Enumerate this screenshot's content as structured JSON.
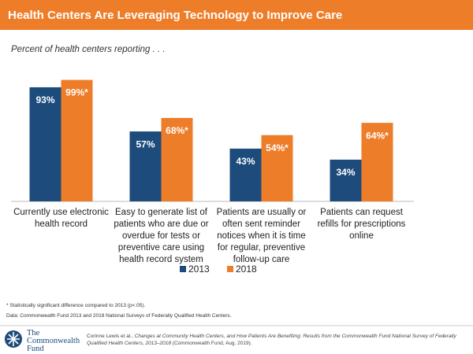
{
  "chart_data": {
    "type": "bar",
    "title": "Health Centers Are Leveraging Technology to Improve Care",
    "subtitle": "Percent of health centers reporting . . .",
    "categories": [
      "Currently use electronic health record",
      "Easy to generate list of patients who are due or overdue for tests or preventive care using health record system",
      "Patients are usually or often sent reminder notices when it is time for regular, preventive follow-up care",
      "Patients can request refills for prescriptions online"
    ],
    "series": [
      {
        "name": "2013",
        "color": "#1c4b7c",
        "values": [
          93,
          57,
          43,
          34
        ],
        "value_labels": [
          "93%",
          "57%",
          "43%",
          "34%"
        ]
      },
      {
        "name": "2018",
        "color": "#ee7d2a",
        "values": [
          99,
          68,
          54,
          64
        ],
        "value_labels": [
          "99%*",
          "68%*",
          "54%*",
          "64%*"
        ]
      }
    ],
    "ylim": [
      0,
      100
    ]
  },
  "footnote": "* Statistically significant difference compared to 2013 (p<.05).",
  "source": "Data: Commonwealth Fund 2013 and 2018 National Surveys of Federally Qualified Health Centers.",
  "logo": "The Commonwealth Fund",
  "citation": {
    "author": "Corinne Lewis et al., ",
    "title": "Changes at Community Health Centers, and How Patients Are Benefiting: Results from the Commonwealth Fund National Survey of Federally Qualified Health Centers, 2013–2018",
    "publisher": " (Commonwealth Fund, Aug. 2019)."
  }
}
